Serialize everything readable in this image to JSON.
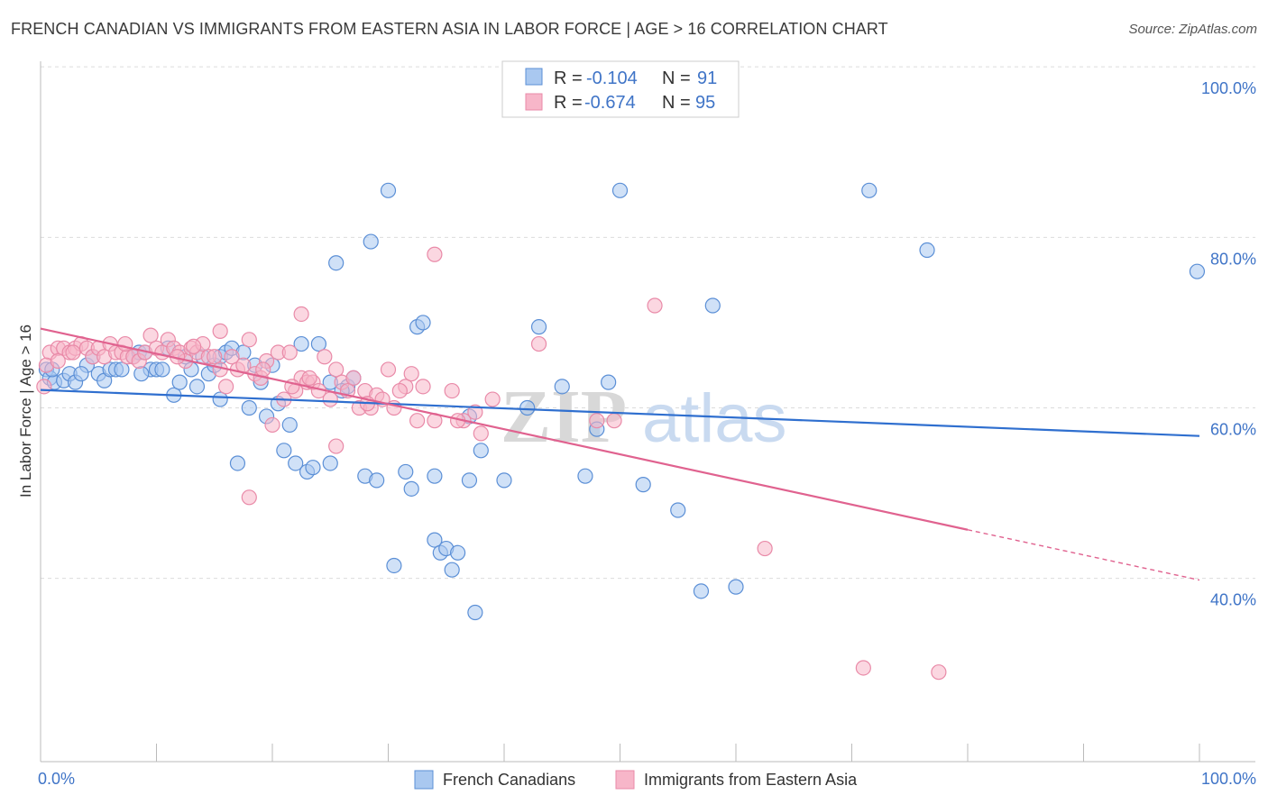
{
  "title": "FRENCH CANADIAN VS IMMIGRANTS FROM EASTERN ASIA IN LABOR FORCE | AGE > 16 CORRELATION CHART",
  "source": "Source: ZipAtlas.com",
  "watermark": {
    "zip": "ZIP",
    "atlas": "atlas"
  },
  "colors": {
    "blue_fill": "#a9c8f0",
    "blue_stroke": "#5b8fd6",
    "blue_line": "#2f6fcf",
    "pink_fill": "#f7b6c9",
    "pink_stroke": "#e98aa8",
    "pink_line": "#e0628f",
    "axis_text": "#3f74c7",
    "grid": "#dcdcdc"
  },
  "legend": {
    "r_label": "R =",
    "n_label": "N =",
    "rows": [
      {
        "r": "-0.104",
        "n": "91"
      },
      {
        "r": "-0.674",
        "n": "95"
      }
    ]
  },
  "chart_data": {
    "type": "scatter",
    "xlabel": "",
    "ylabel": "In Labor Force | Age > 16",
    "xlim": [
      0,
      100
    ],
    "ylim": [
      18.5,
      101.5
    ],
    "x_tick_labels": [
      "0.0%",
      "100.0%"
    ],
    "y_ticks": [
      40,
      60,
      80,
      100
    ],
    "y_tick_labels": [
      "40.0%",
      "60.0%",
      "80.0%",
      "100.0%"
    ],
    "series": [
      {
        "name": "French Canadians",
        "r": -0.104,
        "n": 91,
        "trend": {
          "x0": 0,
          "y0": 62.1,
          "x1": 100,
          "y1": 56.7,
          "solid_until": 100
        },
        "points": [
          [
            0.5,
            64.5
          ],
          [
            0.8,
            63.5
          ],
          [
            1.2,
            63.0
          ],
          [
            2.0,
            63.2
          ],
          [
            2.5,
            64.0
          ],
          [
            3.0,
            63.0
          ],
          [
            4.0,
            65.0
          ],
          [
            4.5,
            66.0
          ],
          [
            5.0,
            64.0
          ],
          [
            5.5,
            63.2
          ],
          [
            6.0,
            64.5
          ],
          [
            6.5,
            64.5
          ],
          [
            7.0,
            64.5
          ],
          [
            8.0,
            66.0
          ],
          [
            8.5,
            66.5
          ],
          [
            9.0,
            66.5
          ],
          [
            9.5,
            64.5
          ],
          [
            10.0,
            64.5
          ],
          [
            10.5,
            64.5
          ],
          [
            11.0,
            67.0
          ],
          [
            11.5,
            61.5
          ],
          [
            12.0,
            63.0
          ],
          [
            12.5,
            66.0
          ],
          [
            13.0,
            64.5
          ],
          [
            13.5,
            62.5
          ],
          [
            14.0,
            66.0
          ],
          [
            14.5,
            64.0
          ],
          [
            15.0,
            65.0
          ],
          [
            15.5,
            66.0
          ],
          [
            15.5,
            61.0
          ],
          [
            16.0,
            66.5
          ],
          [
            16.5,
            67.0
          ],
          [
            17.0,
            53.5
          ],
          [
            17.5,
            66.5
          ],
          [
            18.0,
            60.0
          ],
          [
            18.5,
            65.0
          ],
          [
            19.0,
            63.0
          ],
          [
            19.5,
            59.0
          ],
          [
            20.0,
            65.0
          ],
          [
            20.5,
            60.5
          ],
          [
            21.0,
            55.0
          ],
          [
            21.5,
            58.0
          ],
          [
            22.0,
            53.5
          ],
          [
            22.5,
            67.5
          ],
          [
            23.0,
            52.5
          ],
          [
            23.5,
            53.0
          ],
          [
            24.0,
            67.5
          ],
          [
            25.0,
            53.5
          ],
          [
            25.0,
            63.0
          ],
          [
            25.5,
            77.0
          ],
          [
            26.5,
            62.5
          ],
          [
            27.0,
            63.5
          ],
          [
            28.0,
            52.0
          ],
          [
            28.5,
            79.5
          ],
          [
            29.0,
            51.5
          ],
          [
            30.0,
            85.5
          ],
          [
            30.5,
            41.5
          ],
          [
            31.5,
            52.5
          ],
          [
            32.0,
            50.5
          ],
          [
            32.5,
            69.5
          ],
          [
            33.0,
            70.0
          ],
          [
            34.0,
            52.0
          ],
          [
            34.0,
            44.5
          ],
          [
            34.5,
            43.0
          ],
          [
            35.0,
            43.5
          ],
          [
            35.5,
            41.0
          ],
          [
            36.0,
            43.0
          ],
          [
            37.0,
            51.5
          ],
          [
            37.5,
            36.0
          ],
          [
            38.0,
            55.0
          ],
          [
            40.0,
            51.5
          ],
          [
            42.0,
            60.0
          ],
          [
            43.0,
            69.5
          ],
          [
            45.0,
            62.5
          ],
          [
            47.0,
            52.0
          ],
          [
            48.0,
            57.5
          ],
          [
            50.0,
            85.5
          ],
          [
            52.0,
            51.0
          ],
          [
            55.0,
            48.0
          ],
          [
            57.0,
            38.5
          ],
          [
            58.0,
            72.0
          ],
          [
            60.0,
            39.0
          ],
          [
            71.5,
            85.5
          ],
          [
            76.5,
            78.5
          ],
          [
            99.8,
            76.0
          ],
          [
            49.0,
            63.0
          ],
          [
            37.0,
            59.0
          ],
          [
            3.5,
            64.0
          ],
          [
            8.7,
            64.0
          ],
          [
            1.0,
            64.5
          ],
          [
            26.0,
            62.0
          ]
        ]
      },
      {
        "name": "Immigrants from Eastern Asia",
        "r": -0.674,
        "n": 95,
        "trend": {
          "x0": 0,
          "y0": 69.3,
          "x1": 100,
          "y1": 39.8,
          "solid_until": 80
        },
        "points": [
          [
            0.3,
            62.5
          ],
          [
            0.8,
            66.5
          ],
          [
            1.5,
            67.0
          ],
          [
            2.0,
            67.0
          ],
          [
            2.5,
            66.5
          ],
          [
            3.0,
            67.0
          ],
          [
            3.5,
            67.5
          ],
          [
            4.0,
            67.0
          ],
          [
            4.5,
            66.0
          ],
          [
            5.0,
            67.0
          ],
          [
            5.5,
            66.0
          ],
          [
            6.0,
            67.5
          ],
          [
            6.5,
            66.5
          ],
          [
            7.0,
            66.5
          ],
          [
            7.5,
            66.0
          ],
          [
            8.0,
            66.0
          ],
          [
            8.5,
            65.5
          ],
          [
            9.0,
            66.5
          ],
          [
            9.5,
            68.5
          ],
          [
            10.0,
            67.0
          ],
          [
            10.5,
            66.5
          ],
          [
            11.0,
            68.0
          ],
          [
            11.5,
            67.0
          ],
          [
            12.0,
            66.5
          ],
          [
            12.5,
            65.5
          ],
          [
            13.0,
            67.0
          ],
          [
            13.5,
            66.5
          ],
          [
            14.0,
            67.5
          ],
          [
            14.5,
            66.0
          ],
          [
            15.0,
            66.0
          ],
          [
            15.5,
            64.5
          ],
          [
            15.5,
            69.0
          ],
          [
            16.0,
            62.5
          ],
          [
            16.5,
            66.0
          ],
          [
            17.0,
            64.5
          ],
          [
            17.5,
            65.0
          ],
          [
            18.0,
            68.0
          ],
          [
            18.5,
            64.0
          ],
          [
            19.0,
            63.5
          ],
          [
            19.5,
            65.5
          ],
          [
            20.0,
            58.0
          ],
          [
            20.5,
            66.5
          ],
          [
            21.0,
            61.0
          ],
          [
            21.5,
            66.5
          ],
          [
            22.0,
            62.0
          ],
          [
            22.5,
            63.5
          ],
          [
            23.0,
            63.0
          ],
          [
            23.5,
            63.0
          ],
          [
            24.0,
            62.0
          ],
          [
            24.5,
            66.0
          ],
          [
            25.0,
            61.0
          ],
          [
            25.5,
            64.5
          ],
          [
            26.0,
            63.0
          ],
          [
            27.0,
            63.5
          ],
          [
            27.5,
            60.0
          ],
          [
            28.0,
            62.0
          ],
          [
            28.5,
            60.0
          ],
          [
            29.0,
            61.5
          ],
          [
            29.5,
            61.0
          ],
          [
            30.0,
            64.5
          ],
          [
            30.5,
            60.0
          ],
          [
            31.5,
            62.5
          ],
          [
            32.0,
            64.0
          ],
          [
            32.5,
            58.5
          ],
          [
            33.0,
            62.5
          ],
          [
            34.0,
            58.5
          ],
          [
            35.5,
            62.0
          ],
          [
            36.5,
            58.5
          ],
          [
            37.5,
            59.5
          ],
          [
            38.0,
            57.0
          ],
          [
            39.0,
            61.0
          ],
          [
            43.0,
            67.5
          ],
          [
            22.5,
            71.0
          ],
          [
            18.0,
            49.5
          ],
          [
            25.5,
            55.5
          ],
          [
            34.0,
            78.0
          ],
          [
            53.0,
            72.0
          ],
          [
            48.0,
            58.5
          ],
          [
            49.5,
            58.5
          ],
          [
            62.5,
            43.5
          ],
          [
            71.0,
            29.5
          ],
          [
            77.5,
            29.0
          ],
          [
            0.5,
            65.0
          ],
          [
            2.8,
            66.5
          ],
          [
            7.3,
            67.5
          ],
          [
            11.8,
            66.0
          ],
          [
            13.2,
            67.2
          ],
          [
            19.2,
            64.5
          ],
          [
            21.7,
            62.5
          ],
          [
            23.2,
            63.5
          ],
          [
            26.5,
            62.0
          ],
          [
            28.2,
            60.5
          ],
          [
            31.0,
            62.0
          ],
          [
            36.0,
            58.5
          ],
          [
            1.5,
            65.5
          ]
        ]
      }
    ]
  },
  "bottom_legend": [
    "French Canadians",
    "Immigrants from Eastern Asia"
  ]
}
